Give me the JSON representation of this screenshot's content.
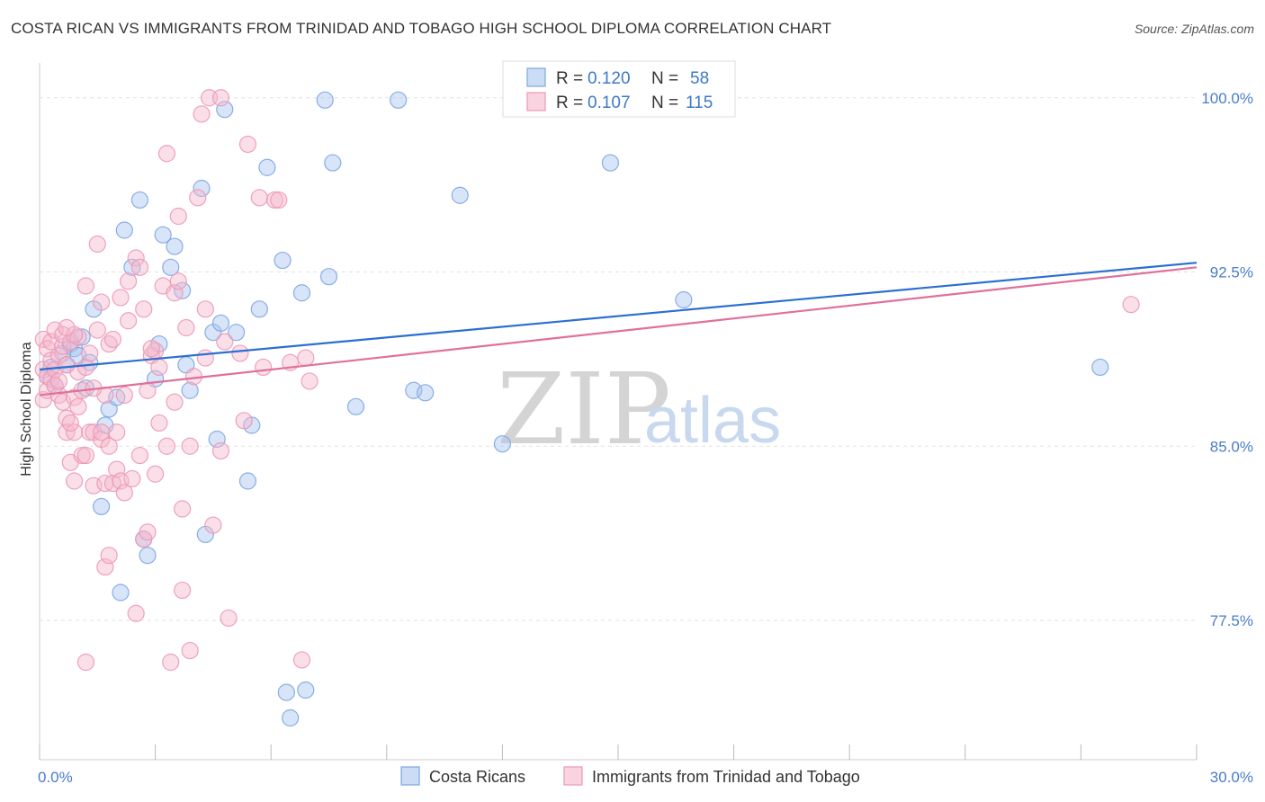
{
  "header": {
    "title": "COSTA RICAN VS IMMIGRANTS FROM TRINIDAD AND TOBAGO HIGH SCHOOL DIPLOMA CORRELATION CHART",
    "source": "Source: ZipAtlas.com"
  },
  "watermark": {
    "zip": "ZIP",
    "atlas": "atlas"
  },
  "stats_legend": {
    "r_label": "R =",
    "n_label": "N =",
    "rows": [
      {
        "r": "0.120",
        "n": "58"
      },
      {
        "r": "0.107",
        "n": "115"
      }
    ]
  },
  "chart_data": {
    "type": "scatter",
    "title": "COSTA RICAN VS IMMIGRANTS FROM TRINIDAD AND TOBAGO HIGH SCHOOL DIPLOMA CORRELATION CHART",
    "xlabel": "",
    "ylabel": "High School Diploma",
    "xlim": [
      0,
      30
    ],
    "ylim": [
      71.5,
      101.5
    ],
    "x_tick_labels": [
      "0.0%",
      "30.0%"
    ],
    "y_ticks": [
      77.5,
      85.0,
      92.5,
      100.0
    ],
    "y_tick_labels": [
      "77.5%",
      "85.0%",
      "92.5%",
      "100.0%"
    ],
    "grid": true,
    "legend_position": "top-center",
    "series": [
      {
        "name": "Costa Ricans",
        "color": "#a9c4ee",
        "line_color": "#2b6fd1",
        "trend": {
          "x": [
            0,
            30
          ],
          "y": [
            88.3,
            92.9
          ]
        },
        "points": [
          [
            0.3,
            88.4
          ],
          [
            0.4,
            87.6
          ],
          [
            0.6,
            89.0
          ],
          [
            0.7,
            88.5
          ],
          [
            0.8,
            89.4
          ],
          [
            0.9,
            89.2
          ],
          [
            1.0,
            88.9
          ],
          [
            1.1,
            89.7
          ],
          [
            1.2,
            87.5
          ],
          [
            1.3,
            88.6
          ],
          [
            1.4,
            90.9
          ],
          [
            1.6,
            82.4
          ],
          [
            1.7,
            85.9
          ],
          [
            1.8,
            86.6
          ],
          [
            2.0,
            87.1
          ],
          [
            2.1,
            78.7
          ],
          [
            2.2,
            94.3
          ],
          [
            2.4,
            92.7
          ],
          [
            2.6,
            95.6
          ],
          [
            2.7,
            81.0
          ],
          [
            2.8,
            80.3
          ],
          [
            3.0,
            87.9
          ],
          [
            3.1,
            89.4
          ],
          [
            3.2,
            94.1
          ],
          [
            3.4,
            92.7
          ],
          [
            3.5,
            93.6
          ],
          [
            3.7,
            91.7
          ],
          [
            3.8,
            88.5
          ],
          [
            3.9,
            87.4
          ],
          [
            4.2,
            96.1
          ],
          [
            4.3,
            81.2
          ],
          [
            4.5,
            89.9
          ],
          [
            4.6,
            85.3
          ],
          [
            4.7,
            90.3
          ],
          [
            4.8,
            99.5
          ],
          [
            5.1,
            89.9
          ],
          [
            5.4,
            83.5
          ],
          [
            5.5,
            85.9
          ],
          [
            5.7,
            90.9
          ],
          [
            5.9,
            97.0
          ],
          [
            6.3,
            93.0
          ],
          [
            6.4,
            74.4
          ],
          [
            6.5,
            73.3
          ],
          [
            6.8,
            91.6
          ],
          [
            6.9,
            74.5
          ],
          [
            7.4,
            99.9
          ],
          [
            7.5,
            92.3
          ],
          [
            7.6,
            97.2
          ],
          [
            8.2,
            86.7
          ],
          [
            9.3,
            99.9
          ],
          [
            9.7,
            87.4
          ],
          [
            10.0,
            87.3
          ],
          [
            10.9,
            95.8
          ],
          [
            12.0,
            85.1
          ],
          [
            14.8,
            97.2
          ],
          [
            16.7,
            91.3
          ],
          [
            27.5,
            88.4
          ],
          [
            0.2,
            88.0
          ]
        ]
      },
      {
        "name": "Immigrants from Trinidad and Tobago",
        "color": "#f5b8cc",
        "line_color": "#e0709a",
        "trend": {
          "x": [
            0,
            30
          ],
          "y": [
            87.2,
            92.7
          ]
        },
        "points": [
          [
            0.1,
            89.6
          ],
          [
            0.1,
            88.3
          ],
          [
            0.1,
            87.0
          ],
          [
            0.2,
            89.2
          ],
          [
            0.2,
            88.0
          ],
          [
            0.2,
            87.4
          ],
          [
            0.3,
            88.7
          ],
          [
            0.3,
            87.9
          ],
          [
            0.3,
            89.5
          ],
          [
            0.4,
            87.6
          ],
          [
            0.4,
            88.3
          ],
          [
            0.4,
            90.0
          ],
          [
            0.5,
            87.2
          ],
          [
            0.5,
            88.9
          ],
          [
            0.6,
            86.9
          ],
          [
            0.6,
            89.3
          ],
          [
            0.7,
            86.2
          ],
          [
            0.7,
            88.5
          ],
          [
            0.7,
            85.6
          ],
          [
            0.8,
            89.5
          ],
          [
            0.8,
            84.3
          ],
          [
            0.9,
            85.6
          ],
          [
            0.9,
            83.5
          ],
          [
            0.9,
            87.1
          ],
          [
            1.0,
            88.2
          ],
          [
            1.0,
            86.7
          ],
          [
            1.0,
            89.7
          ],
          [
            1.1,
            84.6
          ],
          [
            1.1,
            87.4
          ],
          [
            1.2,
            84.6
          ],
          [
            1.2,
            88.4
          ],
          [
            1.2,
            91.9
          ],
          [
            1.3,
            85.6
          ],
          [
            1.3,
            89.0
          ],
          [
            1.4,
            83.3
          ],
          [
            1.4,
            85.6
          ],
          [
            1.5,
            93.7
          ],
          [
            1.5,
            90.0
          ],
          [
            1.6,
            91.2
          ],
          [
            1.6,
            85.3
          ],
          [
            1.7,
            79.8
          ],
          [
            1.7,
            83.4
          ],
          [
            1.7,
            87.2
          ],
          [
            1.8,
            80.3
          ],
          [
            1.8,
            85.0
          ],
          [
            1.8,
            89.4
          ],
          [
            1.9,
            83.4
          ],
          [
            1.9,
            89.6
          ],
          [
            2.0,
            84.0
          ],
          [
            2.0,
            85.6
          ],
          [
            2.1,
            83.5
          ],
          [
            2.1,
            91.4
          ],
          [
            2.2,
            87.2
          ],
          [
            2.2,
            83.0
          ],
          [
            2.3,
            92.1
          ],
          [
            2.4,
            83.6
          ],
          [
            2.5,
            93.1
          ],
          [
            2.5,
            77.8
          ],
          [
            2.6,
            92.7
          ],
          [
            2.7,
            90.9
          ],
          [
            2.7,
            81.0
          ],
          [
            2.8,
            87.4
          ],
          [
            2.8,
            81.3
          ],
          [
            2.9,
            88.9
          ],
          [
            3.0,
            83.8
          ],
          [
            3.0,
            89.1
          ],
          [
            3.1,
            86.0
          ],
          [
            3.2,
            91.9
          ],
          [
            3.3,
            97.6
          ],
          [
            3.3,
            85.0
          ],
          [
            3.4,
            75.7
          ],
          [
            3.5,
            91.6
          ],
          [
            3.5,
            86.9
          ],
          [
            3.6,
            94.9
          ],
          [
            3.6,
            92.1
          ],
          [
            3.7,
            78.8
          ],
          [
            3.7,
            82.3
          ],
          [
            3.8,
            90.1
          ],
          [
            3.9,
            76.2
          ],
          [
            3.9,
            85.0
          ],
          [
            4.0,
            88.0
          ],
          [
            4.1,
            95.7
          ],
          [
            4.2,
            99.3
          ],
          [
            4.3,
            88.8
          ],
          [
            4.3,
            90.9
          ],
          [
            4.4,
            100.0
          ],
          [
            4.5,
            81.6
          ],
          [
            4.7,
            100.0
          ],
          [
            4.7,
            84.8
          ],
          [
            4.8,
            89.5
          ],
          [
            4.9,
            77.6
          ],
          [
            5.2,
            89.0
          ],
          [
            5.3,
            86.1
          ],
          [
            5.4,
            98.0
          ],
          [
            5.7,
            95.7
          ],
          [
            5.8,
            88.4
          ],
          [
            6.1,
            95.6
          ],
          [
            6.2,
            95.6
          ],
          [
            6.5,
            88.6
          ],
          [
            6.8,
            75.8
          ],
          [
            6.9,
            88.8
          ],
          [
            7.0,
            87.8
          ],
          [
            0.6,
            89.8
          ],
          [
            0.9,
            89.8
          ],
          [
            1.6,
            85.6
          ],
          [
            2.3,
            90.4
          ],
          [
            2.9,
            89.2
          ],
          [
            3.1,
            88.4
          ],
          [
            0.5,
            87.8
          ],
          [
            0.7,
            90.1
          ],
          [
            1.2,
            75.7
          ],
          [
            2.6,
            84.6
          ],
          [
            0.8,
            86.0
          ],
          [
            1.4,
            87.5
          ],
          [
            28.3,
            91.1
          ]
        ]
      }
    ]
  },
  "bottom_legend": {
    "items": [
      {
        "label": "Costa Ricans"
      },
      {
        "label": "Immigrants from Trinidad and Tobago"
      }
    ]
  },
  "colors": {
    "blue_fill": "#a9c4ee",
    "blue_line": "#2b6fd1",
    "pink_fill": "#f5b8cc",
    "pink_line": "#e0709a",
    "tick_text": "#4a7ccc"
  }
}
